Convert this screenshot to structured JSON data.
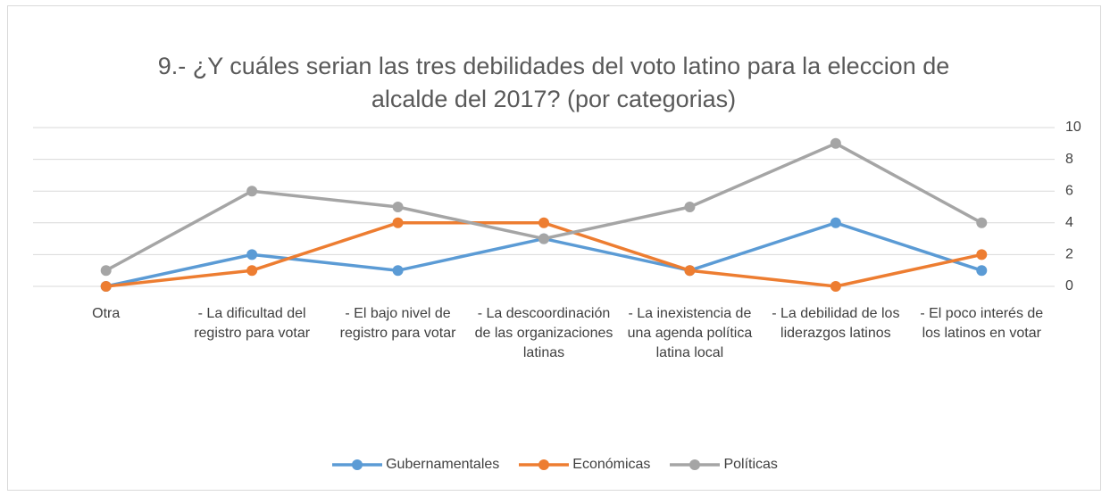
{
  "chart_data": {
    "type": "line",
    "title": "9.- ¿Y cuáles serian las tres debilidades del voto latino para la eleccion de alcalde del 2017?  (por categorias)",
    "categories": [
      "Otra",
      "- La dificultad del registro para votar",
      "- El bajo nivel de registro para votar",
      "- La descoordinación de las organizaciones latinas",
      "- La inexistencia de una agenda política latina local",
      "- La debilidad de los liderazgos latinos",
      "- El poco interés de los latinos en votar"
    ],
    "series": [
      {
        "name": "Gubernamentales",
        "color": "#5b9bd5",
        "values": [
          0,
          2,
          1,
          3,
          1,
          4,
          1
        ]
      },
      {
        "name": "Económicas",
        "color": "#ed7d31",
        "values": [
          0,
          1,
          4,
          4,
          1,
          0,
          2
        ]
      },
      {
        "name": "Políticas",
        "color": "#a5a5a5",
        "values": [
          1,
          6,
          5,
          3,
          5,
          9,
          4
        ]
      }
    ],
    "ylim": [
      0,
      10
    ],
    "yticks": [
      0,
      2,
      4,
      6,
      8,
      10
    ],
    "grid": true,
    "y_axis_side": "right",
    "legend": "bottom"
  }
}
